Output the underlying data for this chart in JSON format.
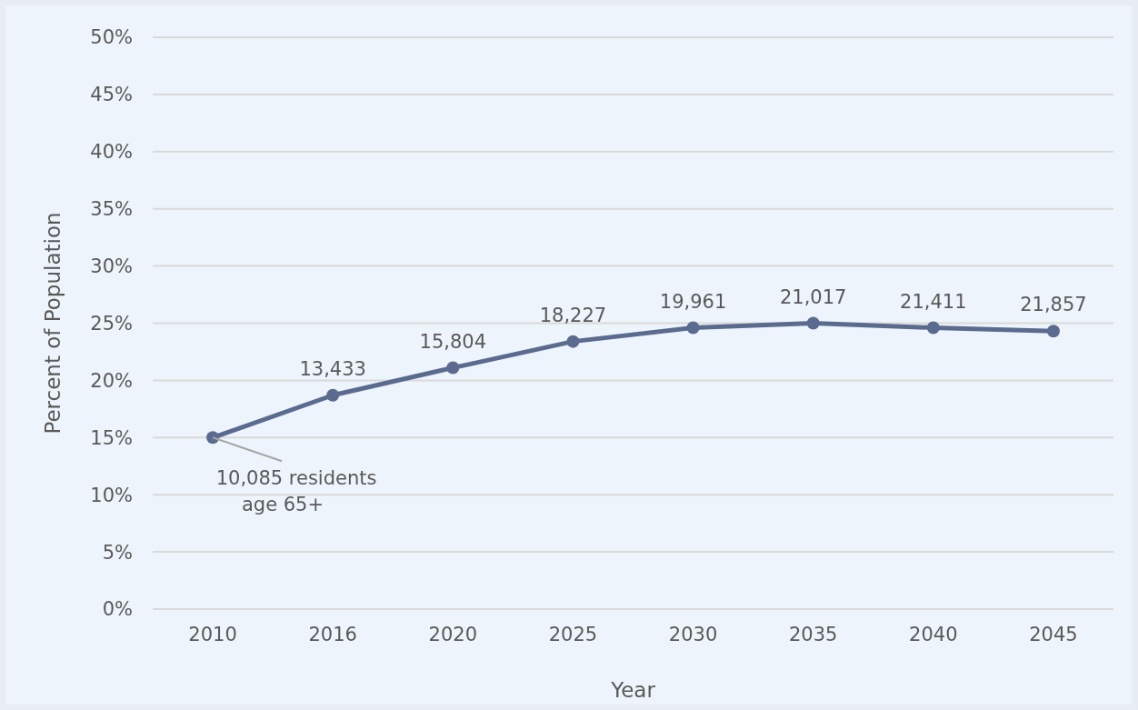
{
  "chart_data": {
    "type": "line",
    "xlabel": "Year",
    "ylabel": "Percent of Population",
    "categories": [
      "2010",
      "2016",
      "2020",
      "2025",
      "2030",
      "2035",
      "2040",
      "2045"
    ],
    "series": [
      {
        "color": "#5b6b8f",
        "values": [
          15.0,
          18.7,
          21.1,
          23.4,
          24.6,
          25.0,
          24.6,
          24.3
        ]
      }
    ],
    "annotations": [
      {
        "text": "10,085 residents age 65+",
        "x": "2010",
        "y": 15.0
      },
      {
        "text": "13,433",
        "x": "2016",
        "y": 18.7
      },
      {
        "text": "15,804",
        "x": "2020",
        "y": 21.1
      },
      {
        "text": "18,227",
        "x": "2025",
        "y": 23.4
      },
      {
        "text": "19,961",
        "x": "2030",
        "y": 24.6
      },
      {
        "text": "21,017",
        "x": "2035",
        "y": 25.0
      },
      {
        "text": "21,411",
        "x": "2040",
        "y": 24.6
      },
      {
        "text": "21,857",
        "x": "2045",
        "y": 24.3
      }
    ],
    "ylim": [
      0,
      50
    ],
    "yticks": [
      {
        "value": 0,
        "label": "0%"
      },
      {
        "value": 5,
        "label": "5%"
      },
      {
        "value": 10,
        "label": "10%"
      },
      {
        "value": 15,
        "label": "15%"
      },
      {
        "value": 20,
        "label": "20%"
      },
      {
        "value": 25,
        "label": "25%"
      },
      {
        "value": 30,
        "label": "30%"
      },
      {
        "value": 35,
        "label": "35%"
      },
      {
        "value": 40,
        "label": "40%"
      },
      {
        "value": 45,
        "label": "45%"
      },
      {
        "value": 50,
        "label": "50%"
      }
    ],
    "grid": "y",
    "marker": "circle",
    "line_style": "solid",
    "legend": false
  }
}
